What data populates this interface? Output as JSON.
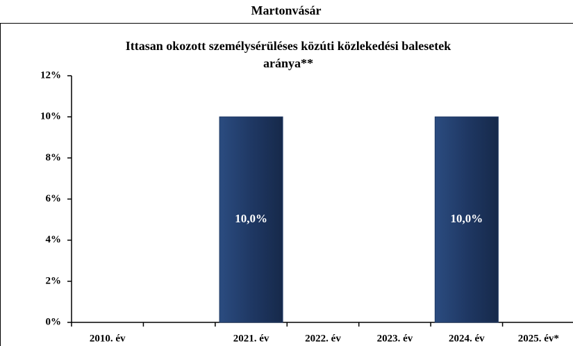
{
  "chart_data": {
    "type": "bar",
    "title": "Martonvásár",
    "subtitle": [
      "Ittasan okozott személysérüléses közúti közlekedési balesetek",
      "aránya**"
    ],
    "categories": [
      "2010. év",
      null,
      "2021. év",
      "2022. év",
      "2023. év",
      "2024. év",
      "2025. év*"
    ],
    "values": [
      0,
      0,
      10,
      0,
      0,
      10,
      0
    ],
    "value_labels": [
      null,
      null,
      "10,0%",
      null,
      null,
      "10,0%",
      null
    ],
    "color": "#1f3864",
    "ylim": [
      0,
      12
    ],
    "yticks": [
      {
        "value": 0,
        "label": "0%"
      },
      {
        "value": 2,
        "label": "2%"
      },
      {
        "value": 4,
        "label": "4%"
      },
      {
        "value": 6,
        "label": "6%"
      },
      {
        "value": 8,
        "label": "8%"
      },
      {
        "value": 10,
        "label": "10%"
      },
      {
        "value": 12,
        "label": "12%"
      }
    ],
    "grid": false
  }
}
